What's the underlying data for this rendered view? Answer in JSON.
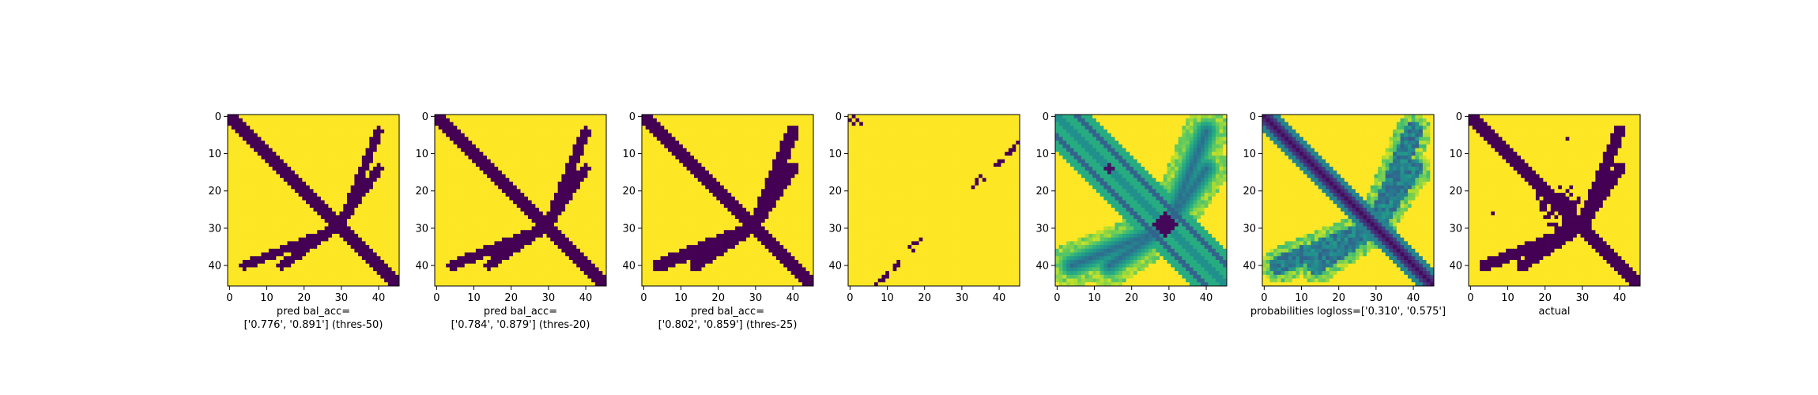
{
  "colors": {
    "dark": "#440154",
    "light": "#fde725",
    "frame": "#000000"
  },
  "chart_data": [
    {
      "type": "heatmap",
      "colormap": "viridis",
      "size": 46,
      "xticks": [
        0,
        10,
        20,
        30,
        40
      ],
      "yticks": [
        0,
        10,
        20,
        30,
        40
      ],
      "variant": "pred",
      "thickness": 2.0,
      "xlabel": [
        "pred bal_acc=",
        "['0.776', '0.891'] (thres-50)"
      ]
    },
    {
      "type": "heatmap",
      "colormap": "viridis",
      "size": 46,
      "xticks": [
        0,
        10,
        20,
        30,
        40
      ],
      "yticks": [
        0,
        10,
        20,
        30,
        40
      ],
      "variant": "pred",
      "thickness": 2.3,
      "xlabel": [
        "pred bal_acc=",
        "['0.784', '0.879'] (thres-20)"
      ]
    },
    {
      "type": "heatmap",
      "colormap": "viridis",
      "size": 46,
      "xticks": [
        0,
        10,
        20,
        30,
        40
      ],
      "yticks": [
        0,
        10,
        20,
        30,
        40
      ],
      "variant": "pred",
      "thickness": 2.8,
      "xlabel": [
        "pred bal_acc=",
        "['0.802', '0.859'] (thres-25)"
      ]
    },
    {
      "type": "heatmap",
      "colormap": "viridis",
      "size": 46,
      "xticks": [
        0,
        10,
        20,
        30,
        40
      ],
      "yticks": [
        0,
        10,
        20,
        30,
        40
      ],
      "variant": "sparse",
      "xlabel": []
    },
    {
      "type": "heatmap",
      "colormap": "viridis",
      "size": 46,
      "xticks": [
        0,
        10,
        20,
        30,
        40
      ],
      "yticks": [
        0,
        10,
        20,
        30,
        40
      ],
      "variant": "prob-band",
      "xlabel": []
    },
    {
      "type": "heatmap",
      "colormap": "viridis",
      "size": 46,
      "xticks": [
        0,
        10,
        20,
        30,
        40
      ],
      "yticks": [
        0,
        10,
        20,
        30,
        40
      ],
      "variant": "prob",
      "xlabel": [
        "probabilities logloss=['0.310', '0.575']"
      ]
    },
    {
      "type": "heatmap",
      "colormap": "viridis",
      "size": 46,
      "xticks": [
        0,
        10,
        20,
        30,
        40
      ],
      "yticks": [
        0,
        10,
        20,
        30,
        40
      ],
      "variant": "actual",
      "xlabel": [
        "actual"
      ]
    }
  ]
}
